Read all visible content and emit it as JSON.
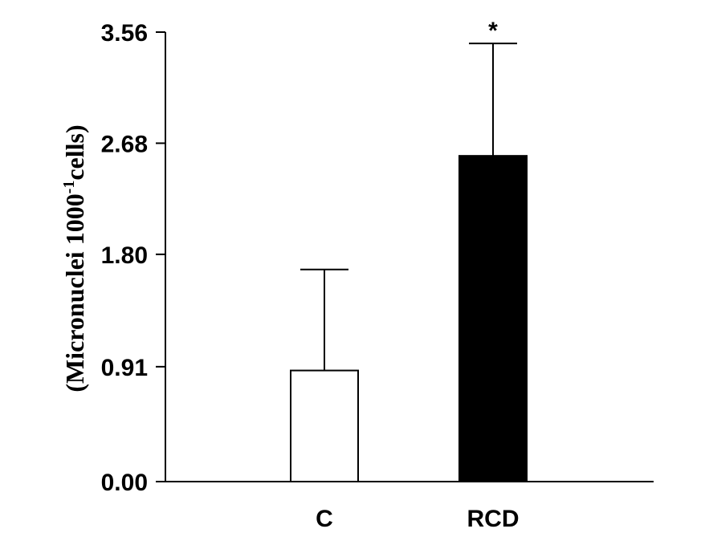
{
  "chart_data": {
    "type": "bar",
    "categories": [
      "C",
      "RCD"
    ],
    "values": [
      0.88,
      2.58
    ],
    "error_upper": [
      1.68,
      3.47
    ],
    "bar_colors": [
      "#ffffff",
      "#000000"
    ],
    "significance": [
      "",
      "*"
    ],
    "ylabel_main": "(Micronuclei 1000",
    "ylabel_sup": "-1",
    "ylabel_tail": "cells)",
    "yticks": [
      "0.00",
      "0.91",
      "1.80",
      "2.68",
      "3.56"
    ],
    "ytick_values": [
      0.0,
      0.91,
      1.8,
      2.68,
      3.56
    ],
    "ylim": [
      0,
      3.56
    ],
    "grid": false
  }
}
